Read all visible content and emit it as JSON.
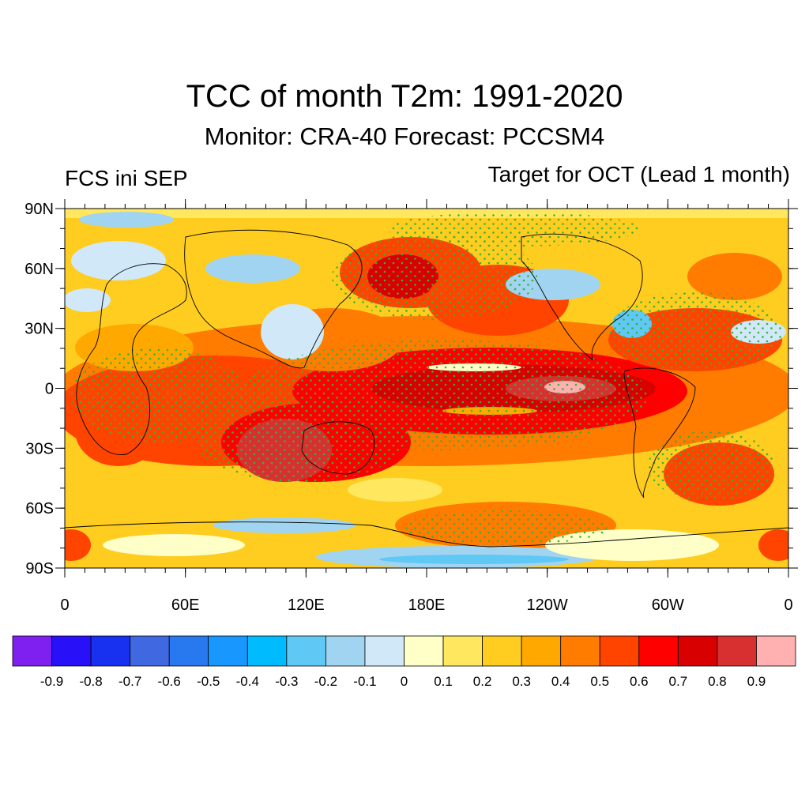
{
  "title": "TCC of month T2m: 1991-2020",
  "subtitle": "Monitor: CRA-40   Forecast: PCCSM4",
  "left_label": "FCS ini SEP",
  "right_label": "Target for OCT (Lead 1 month)",
  "lat_ticks": [
    "90N",
    "60N",
    "30N",
    "0",
    "30S",
    "60S",
    "90S"
  ],
  "lon_ticks": [
    "0",
    "60E",
    "120E",
    "180E",
    "120W",
    "60W",
    "0"
  ],
  "colorbar": {
    "colors": [
      "#8020f0",
      "#2810f8",
      "#1830f0",
      "#4068e0",
      "#2878f0",
      "#1898ff",
      "#00bcff",
      "#60c8f4",
      "#a0d4f0",
      "#d0e8f8",
      "#ffffc8",
      "#ffe860",
      "#ffcc20",
      "#ffa800",
      "#ff7c00",
      "#ff4400",
      "#ff0000",
      "#d80000",
      "#d83030",
      "#ffb0b0"
    ],
    "labels": [
      "-0.9",
      "-0.8",
      "-0.7",
      "-0.6",
      "-0.5",
      "-0.4",
      "-0.3",
      "-0.2",
      "-0.1",
      "0",
      "0.1",
      "0.2",
      "0.3",
      "0.4",
      "0.5",
      "0.6",
      "0.7",
      "0.8",
      "0.9"
    ]
  }
}
